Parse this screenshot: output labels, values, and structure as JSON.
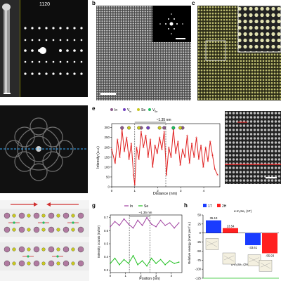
{
  "figure": {
    "panels": {
      "a": {
        "letter": "",
        "zone": "1120"
      },
      "b": {
        "letter": "b"
      },
      "c": {
        "letter": "c"
      },
      "d": {
        "letter": ""
      },
      "e": {
        "letter": "e",
        "legend": [
          "In",
          "V",
          "Se",
          "V"
        ],
        "legend_sub": [
          "",
          "In",
          "",
          "Se"
        ],
        "annotation": "~1.35 nm",
        "xlabel": "Distance (nm)",
        "ylabel": "Intensity (a.u.)",
        "x_ticks": [
          "0",
          "1",
          "2",
          "3",
          "4"
        ],
        "y_ticks": [
          "0",
          "50",
          "100",
          "150",
          "200",
          "250",
          "300"
        ]
      },
      "f": {
        "letter": ""
      },
      "g": {
        "letter": "g",
        "legend": [
          "In",
          "Se"
        ],
        "annotation": "~1.35 nm",
        "xlabel": "Position (nm)",
        "ylabel": "Intensity counts (In/Se)",
        "x_ticks": [
          "0",
          "1",
          "2",
          "3",
          "4"
        ],
        "y_ticks": [
          "0.3",
          "0.4",
          "0.5",
          "0.6",
          "0.7"
        ]
      },
      "h": {
        "letter": "h",
        "legend": [
          "1T",
          "2H"
        ],
        "ylabel": "Relative energy (meV per f.u.)",
        "y_ticks": [
          "50",
          "25",
          "0",
          "-25",
          "-50",
          "-75",
          "-100",
          "-125"
        ],
        "top_label": "α-In₂Se₃ (1T)",
        "bottom_label": "α-In₂Se₃ (2H)",
        "values_text": [
          "35.13",
          "13.54",
          "-33.61",
          "-55.93"
        ]
      }
    }
  },
  "chart_data": [
    {
      "type": "line",
      "title": "",
      "xlabel": "Distance (nm)",
      "ylabel": "Intensity (a.u.)",
      "xlim": [
        0,
        4.7
      ],
      "ylim": [
        0,
        320
      ],
      "series": [
        {
          "name": "",
          "color": "#e02020",
          "x": [
            0.0,
            0.15,
            0.25,
            0.35,
            0.45,
            0.55,
            0.65,
            0.75,
            0.85,
            0.95,
            1.0,
            1.08,
            1.18,
            1.28,
            1.38,
            1.48,
            1.58,
            1.68,
            1.78,
            1.88,
            1.98,
            2.08,
            2.18,
            2.28,
            2.38,
            2.48,
            2.58,
            2.68,
            2.78,
            2.88,
            2.98,
            3.08,
            3.18,
            3.28,
            3.38,
            3.48,
            3.58,
            3.68,
            3.78,
            3.88,
            3.98,
            4.08,
            4.18,
            4.28,
            4.38,
            4.48,
            4.6
          ],
          "values": [
            190,
            120,
            240,
            150,
            290,
            180,
            250,
            140,
            220,
            60,
            10,
            200,
            140,
            280,
            200,
            260,
            150,
            240,
            100,
            210,
            170,
            250,
            190,
            280,
            60,
            200,
            150,
            290,
            170,
            230,
            110,
            190,
            150,
            260,
            120,
            220,
            150,
            250,
            140,
            210,
            100,
            200,
            130,
            230,
            160,
            90,
            60
          ]
        }
      ],
      "annotations": [
        {
          "text": "~1.35 nm",
          "x_range": [
            1.0,
            2.35
          ]
        }
      ]
    },
    {
      "type": "line",
      "title": "",
      "xlabel": "Position (nm)",
      "ylabel": "Intensity counts (In/Se)",
      "xlim": [
        0,
        4.7
      ],
      "ylim": [
        0.28,
        0.72
      ],
      "series": [
        {
          "name": "In",
          "color": "#a040a0",
          "x": [
            0.0,
            0.3,
            0.6,
            0.9,
            1.2,
            1.5,
            1.8,
            2.1,
            2.4,
            2.7,
            3.0,
            3.3,
            3.6,
            3.9,
            4.2,
            4.5
          ],
          "values": [
            0.63,
            0.67,
            0.64,
            0.69,
            0.65,
            0.62,
            0.68,
            0.64,
            0.7,
            0.65,
            0.63,
            0.68,
            0.64,
            0.66,
            0.62,
            0.66
          ]
        },
        {
          "name": "Se",
          "color": "#20c020",
          "x": [
            0.0,
            0.3,
            0.6,
            0.9,
            1.2,
            1.5,
            1.8,
            2.1,
            2.4,
            2.7,
            3.0,
            3.3,
            3.6,
            3.9,
            4.2,
            4.5
          ],
          "values": [
            0.35,
            0.39,
            0.34,
            0.38,
            0.35,
            0.41,
            0.34,
            0.37,
            0.33,
            0.39,
            0.35,
            0.38,
            0.34,
            0.37,
            0.35,
            0.36
          ]
        }
      ],
      "annotations": [
        {
          "text": "~1.35 nm",
          "x_range": [
            1.25,
            2.6
          ]
        }
      ]
    },
    {
      "type": "bar",
      "title": "",
      "ylabel": "Relative energy (meV per f.u.)",
      "ylim": [
        -125,
        50
      ],
      "categories": [
        "",
        "",
        "",
        ""
      ],
      "series": [
        {
          "name": "1T",
          "color": "#1a3cff",
          "values": [
            35.13,
            0,
            -33.61,
            0
          ]
        },
        {
          "name": "2H",
          "color": "#ff2020",
          "values": [
            0,
            13.54,
            0,
            -55.93
          ]
        }
      ]
    }
  ]
}
